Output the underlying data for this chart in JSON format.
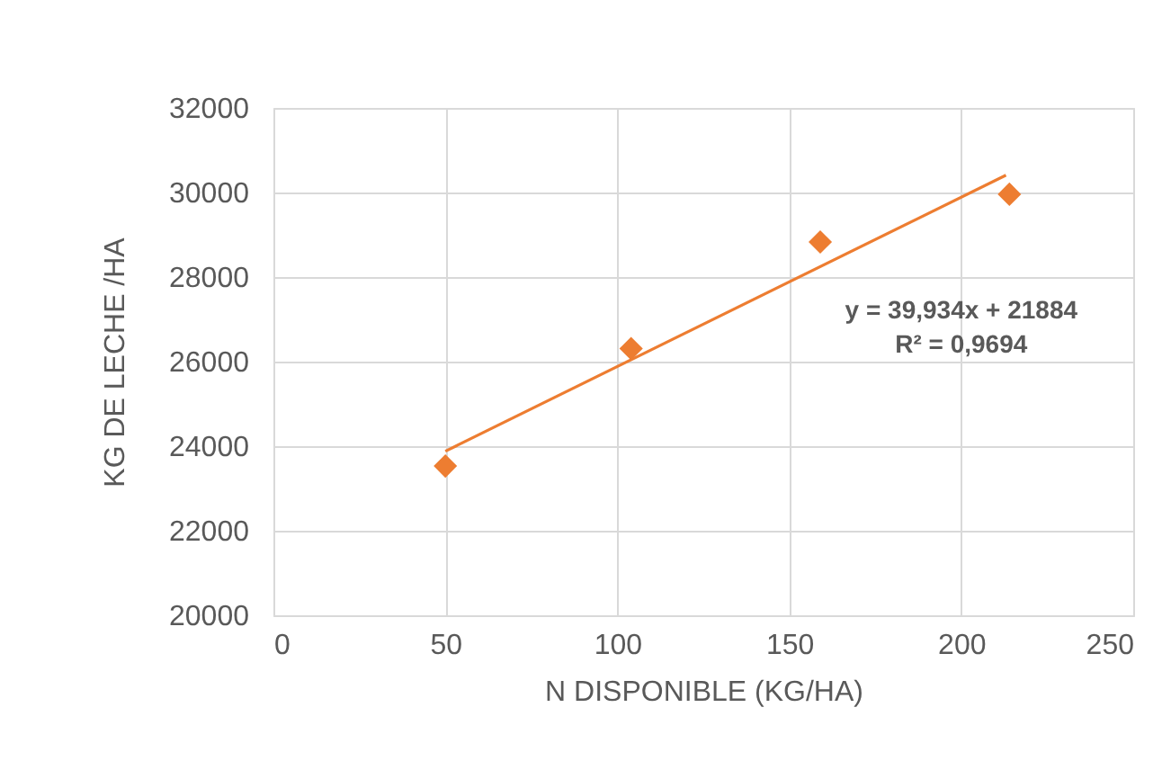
{
  "chart_data": {
    "type": "scatter",
    "xlabel": "N DISPONIBLE (KG/HA)",
    "ylabel": "KG DE LECHE /HA",
    "series": [
      {
        "color": "#ed7d31",
        "marker": "diamond",
        "x": [
          50,
          104,
          159,
          214
        ],
        "values": [
          23530,
          26310,
          28830,
          29960
        ]
      },
      {
        "type": "line",
        "color": "#ed7d31",
        "line_style": "solid",
        "x": [
          50,
          213
        ],
        "values": [
          23880,
          30410
        ]
      }
    ],
    "annotations": [
      "y = 39,934x + 21884",
      "R² = 0,9694"
    ],
    "xlim": [
      0,
      250
    ],
    "xticks": [
      0,
      50,
      100,
      150,
      200,
      250
    ],
    "ylim": [
      20000,
      32000
    ],
    "yticks": [
      20000,
      22000,
      24000,
      26000,
      28000,
      30000,
      32000
    ],
    "grid": true
  }
}
